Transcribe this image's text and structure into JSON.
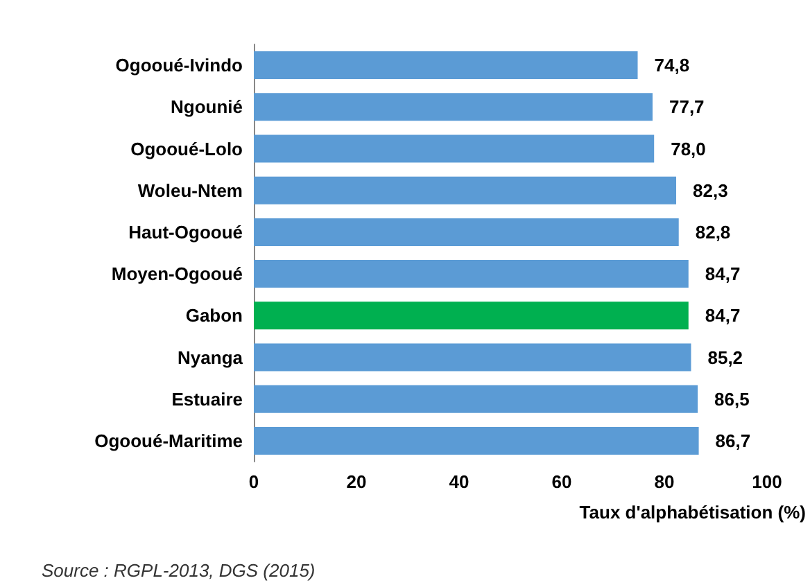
{
  "chart_data": {
    "type": "bar",
    "orientation": "horizontal",
    "xlabel": "Taux d'alphabétisation (%)",
    "categories": [
      "Ogooué-Ivindo",
      "Ngounié",
      "Ogooué-Lolo",
      "Woleu-Ntem",
      "Haut-Ogooué",
      "Moyen-Ogooué",
      "Gabon",
      "Nyanga",
      "Estuaire",
      "Ogooué-Maritime"
    ],
    "values": [
      74.8,
      77.7,
      78.0,
      82.3,
      82.8,
      84.7,
      84.7,
      85.2,
      86.5,
      86.7
    ],
    "colors": [
      "#5b9bd5",
      "#5b9bd5",
      "#5b9bd5",
      "#5b9bd5",
      "#5b9bd5",
      "#5b9bd5",
      "#00b050",
      "#5b9bd5",
      "#5b9bd5",
      "#5b9bd5"
    ],
    "value_labels": [
      "74,8",
      "77,7",
      "78,0",
      "82,3",
      "82,8",
      "84,7",
      "84,7",
      "85,2",
      "86,5",
      "86,7"
    ],
    "xlim": [
      0,
      100
    ],
    "xticks": [
      0,
      20,
      40,
      60,
      80,
      100
    ],
    "annotations": [
      "Source : RGPL-2013, DGS (2015)"
    ]
  }
}
